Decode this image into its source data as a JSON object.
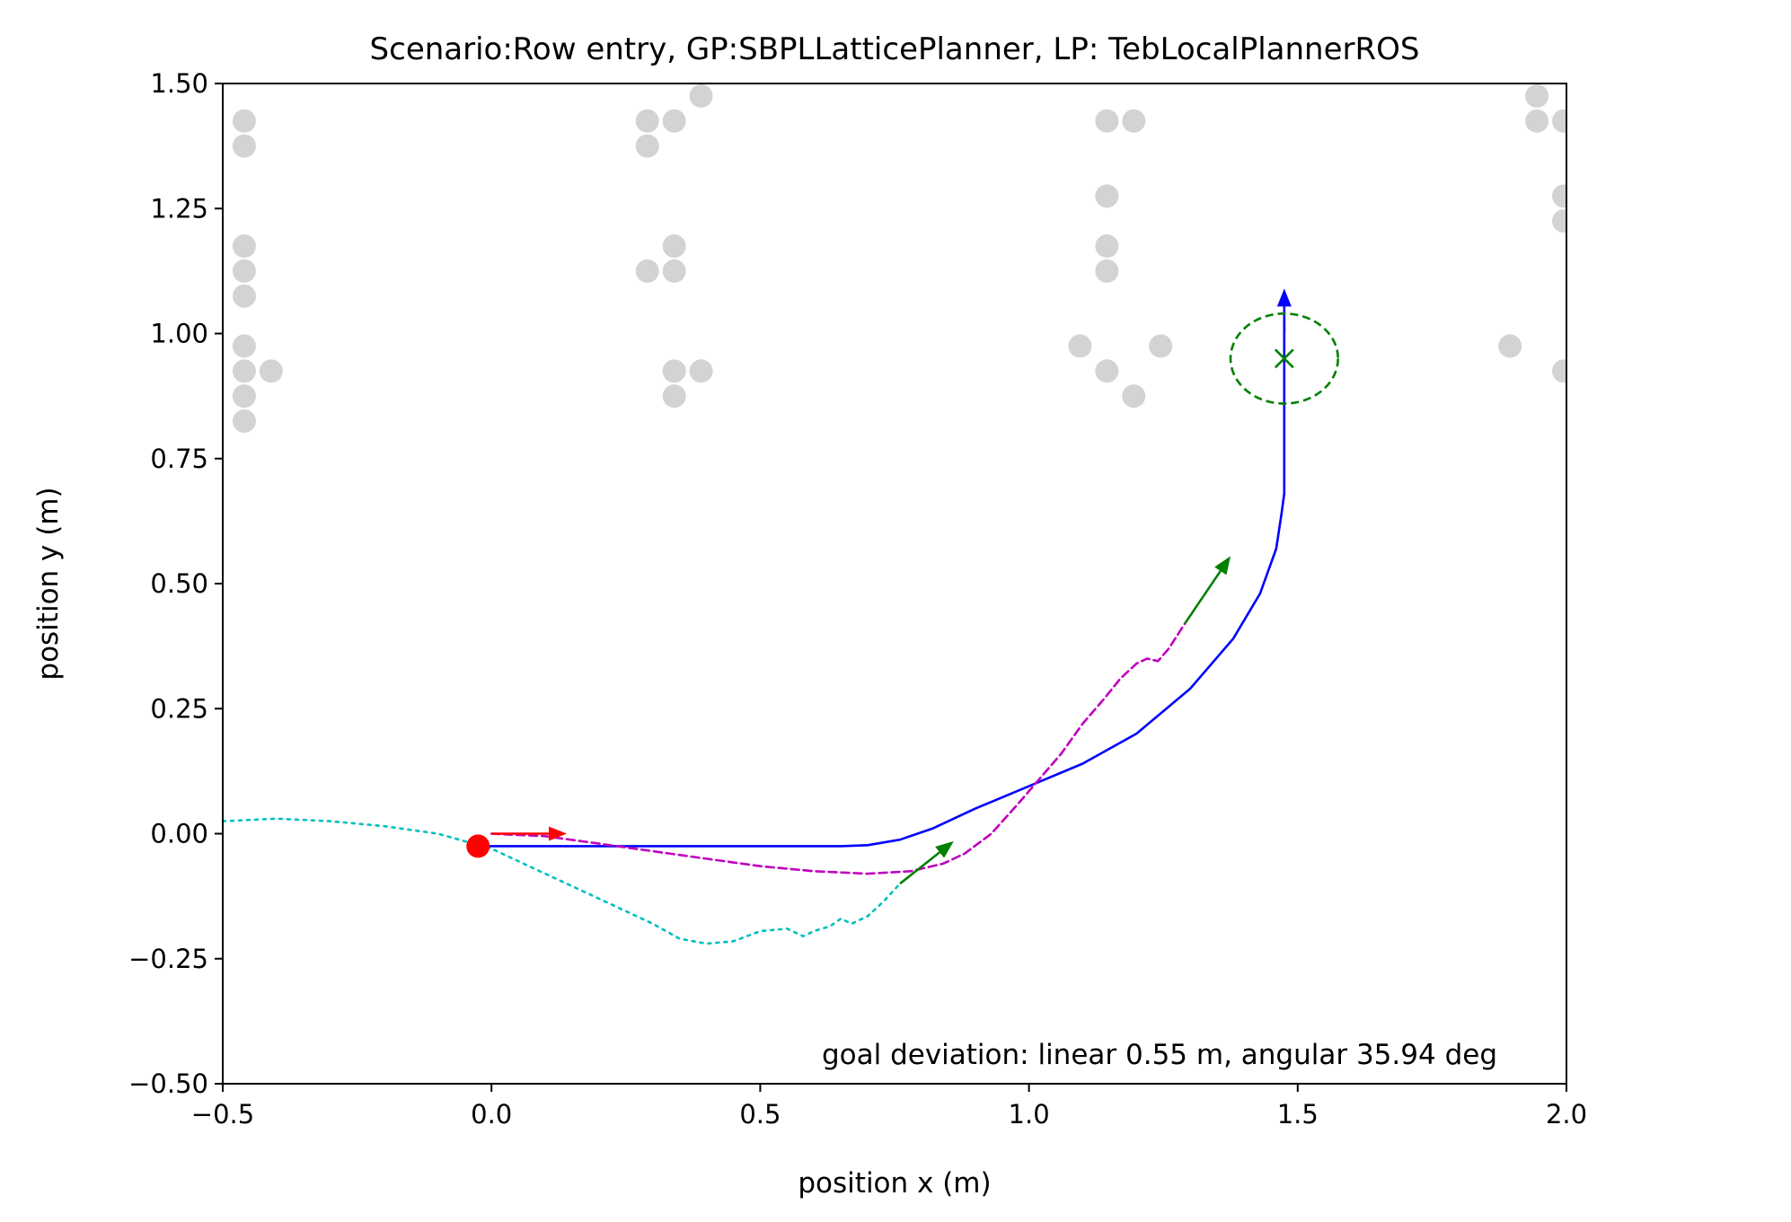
{
  "chart_data": {
    "type": "line",
    "title": "Scenario:Row entry, GP:SBPLLatticePlanner, LP: TebLocalPlannerROS",
    "xlabel": "position x (m)",
    "ylabel": "position y (m)",
    "xlim": [
      -0.5,
      2.0
    ],
    "ylim": [
      -0.5,
      1.5
    ],
    "xticks": [
      -0.5,
      0.0,
      0.5,
      1.0,
      1.5,
      2.0
    ],
    "xtick_labels": [
      "−0.5",
      "0.0",
      "0.5",
      "1.0",
      "1.5",
      "2.0"
    ],
    "yticks": [
      -0.5,
      -0.25,
      0.0,
      0.25,
      0.5,
      0.75,
      1.0,
      1.25,
      1.5
    ],
    "ytick_labels": [
      "−0.50",
      "−0.25",
      "0.00",
      "0.25",
      "0.50",
      "0.75",
      "1.00",
      "1.25",
      "1.50"
    ],
    "grid": false,
    "annotation": "goal deviation: linear 0.55 m, angular 35.94 deg",
    "colors": {
      "obstacles": "#d3d3d3",
      "global_plan": "#0000ff",
      "robot_path": "#bf00bf",
      "local_trace": "#00bfbf",
      "start": "#ff0000",
      "goal": "#008000",
      "arrow_goal": "#008000"
    },
    "obstacles": [
      [
        -0.46,
        1.425
      ],
      [
        -0.46,
        1.375
      ],
      [
        -0.46,
        1.175
      ],
      [
        -0.46,
        1.125
      ],
      [
        -0.46,
        1.075
      ],
      [
        -0.46,
        0.975
      ],
      [
        -0.46,
        0.925
      ],
      [
        -0.46,
        0.875
      ],
      [
        -0.46,
        0.825
      ],
      [
        -0.41,
        0.925
      ],
      [
        0.29,
        1.425
      ],
      [
        0.29,
        1.375
      ],
      [
        0.34,
        1.425
      ],
      [
        0.39,
        1.475
      ],
      [
        0.29,
        1.125
      ],
      [
        0.34,
        1.175
      ],
      [
        0.34,
        1.125
      ],
      [
        0.34,
        0.925
      ],
      [
        0.34,
        0.875
      ],
      [
        0.39,
        0.925
      ],
      [
        1.145,
        1.425
      ],
      [
        1.195,
        1.425
      ],
      [
        1.145,
        1.275
      ],
      [
        1.145,
        1.175
      ],
      [
        1.145,
        1.125
      ],
      [
        1.095,
        0.975
      ],
      [
        1.145,
        0.925
      ],
      [
        1.195,
        0.875
      ],
      [
        1.245,
        0.975
      ],
      [
        1.945,
        1.475
      ],
      [
        1.945,
        1.425
      ],
      [
        1.995,
        1.425
      ],
      [
        1.995,
        1.275
      ],
      [
        1.995,
        1.225
      ],
      [
        1.895,
        0.975
      ],
      [
        1.995,
        0.925
      ]
    ],
    "series": [
      {
        "style": "solid",
        "x": [
          -0.025,
          0.65,
          0.7,
          0.76,
          0.82,
          0.9,
          1.0,
          1.1,
          1.2,
          1.3,
          1.38,
          1.43,
          1.46,
          1.47,
          1.475,
          1.475,
          1.475
        ],
        "y": [
          -0.025,
          -0.025,
          -0.023,
          -0.012,
          0.01,
          0.05,
          0.095,
          0.14,
          0.2,
          0.29,
          0.39,
          0.48,
          0.57,
          0.64,
          0.68,
          0.9,
          1.03
        ]
      },
      {
        "style": "dashed",
        "x": [
          0.0,
          0.1,
          0.2,
          0.3,
          0.4,
          0.5,
          0.6,
          0.7,
          0.78,
          0.84,
          0.88,
          0.93,
          0.98,
          1.02,
          1.06,
          1.1,
          1.14,
          1.17,
          1.2,
          1.22,
          1.24,
          1.26,
          1.29
        ],
        "y": [
          0.0,
          -0.005,
          -0.02,
          -0.035,
          -0.05,
          -0.065,
          -0.075,
          -0.08,
          -0.075,
          -0.06,
          -0.04,
          0.0,
          0.06,
          0.11,
          0.16,
          0.22,
          0.27,
          0.31,
          0.34,
          0.35,
          0.345,
          0.37,
          0.42
        ]
      },
      {
        "style": "dotted",
        "x": [
          -0.5,
          -0.4,
          -0.3,
          -0.2,
          -0.1,
          0.0,
          0.1,
          0.2,
          0.3,
          0.35,
          0.4,
          0.45,
          0.5,
          0.55,
          0.58,
          0.6,
          0.63,
          0.65,
          0.67,
          0.7,
          0.73,
          0.76
        ],
        "y": [
          0.025,
          0.03,
          0.025,
          0.015,
          0.0,
          -0.03,
          -0.08,
          -0.13,
          -0.18,
          -0.21,
          -0.22,
          -0.215,
          -0.195,
          -0.19,
          -0.205,
          -0.195,
          -0.185,
          -0.17,
          -0.18,
          -0.165,
          -0.135,
          -0.1
        ]
      }
    ],
    "start_point": [
      -0.025,
      -0.025
    ],
    "goal_point": [
      1.475,
      0.95
    ],
    "goal_circle": {
      "center": [
        1.475,
        0.95
      ],
      "rx": 0.1,
      "ry": 0.09
    },
    "arrows": [
      {
        "color_key": "start",
        "from": [
          0.0,
          0.0
        ],
        "to": [
          0.14,
          0.0
        ]
      },
      {
        "color_key": "arrow_goal",
        "from": [
          0.76,
          -0.1
        ],
        "to": [
          0.86,
          -0.015
        ]
      },
      {
        "color_key": "arrow_goal",
        "from": [
          1.29,
          0.42
        ],
        "to": [
          1.375,
          0.555
        ]
      },
      {
        "color_key": "global_plan",
        "from": [
          1.475,
          1.0
        ],
        "to": [
          1.475,
          1.09
        ]
      }
    ]
  }
}
